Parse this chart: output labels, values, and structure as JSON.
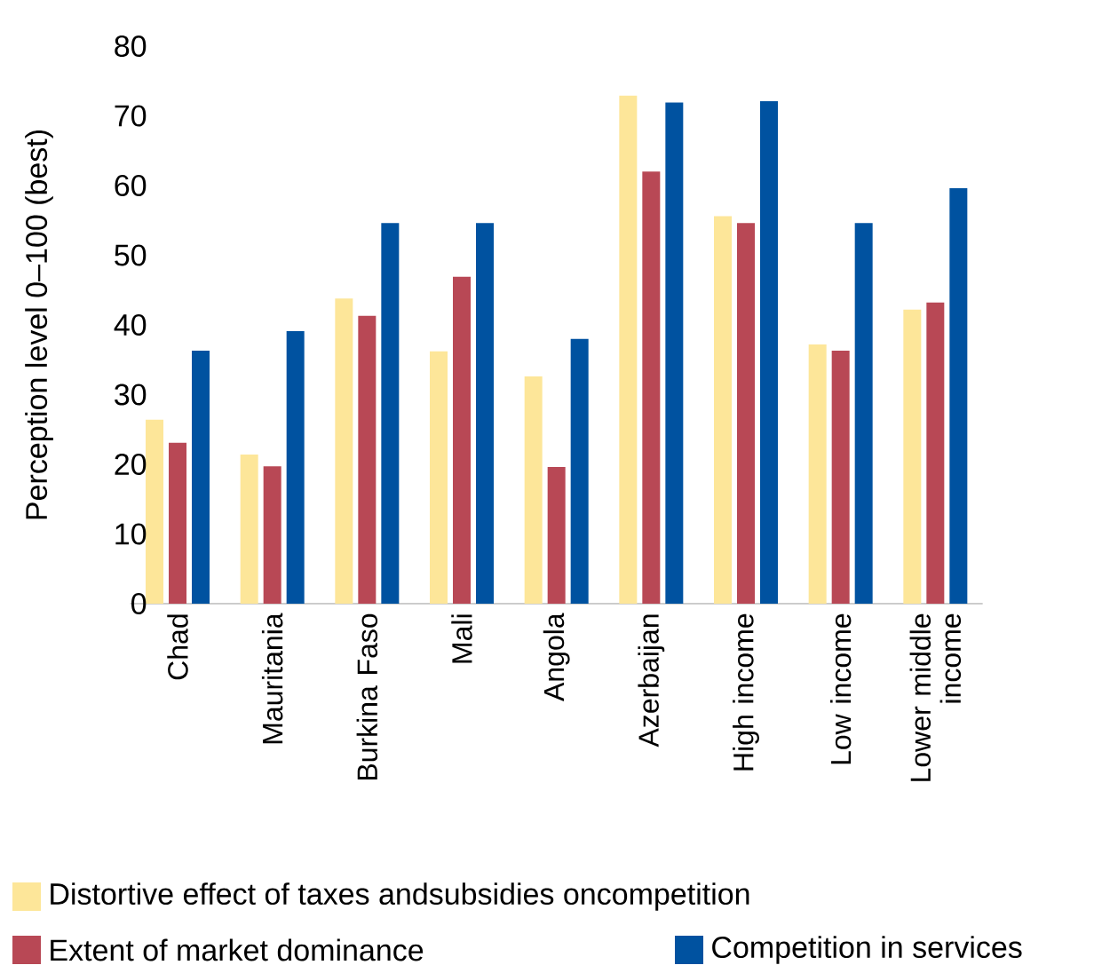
{
  "chart_data": {
    "type": "bar",
    "ylabel": "Perception level 0–100 (best)",
    "categories": [
      "Chad",
      "Mauritania",
      "Burkina Faso",
      "Mali",
      "Angola",
      "Azerbaijan",
      "High income",
      "Low income",
      "Lower middle income"
    ],
    "series": [
      {
        "name": "Distortive effect of taxes andsubsidies oncompetition",
        "color": "#fde699",
        "values": [
          26.4,
          21.4,
          43.8,
          36.2,
          32.6,
          72.9,
          55.6,
          37.2,
          42.2
        ]
      },
      {
        "name": "Extent of market dominance",
        "color": "#b84855",
        "values": [
          23.1,
          19.7,
          41.3,
          46.9,
          19.6,
          62.0,
          54.6,
          36.3,
          43.2
        ]
      },
      {
        "name": "Competition in services",
        "color": "#0052a0",
        "values": [
          36.3,
          39.1,
          54.6,
          54.6,
          38.0,
          71.9,
          72.1,
          54.6,
          59.6
        ]
      }
    ],
    "ylim": [
      0,
      80
    ],
    "yticks": [
      0,
      10,
      20,
      30,
      40,
      50,
      60,
      70,
      80
    ],
    "legend": "bottom"
  }
}
